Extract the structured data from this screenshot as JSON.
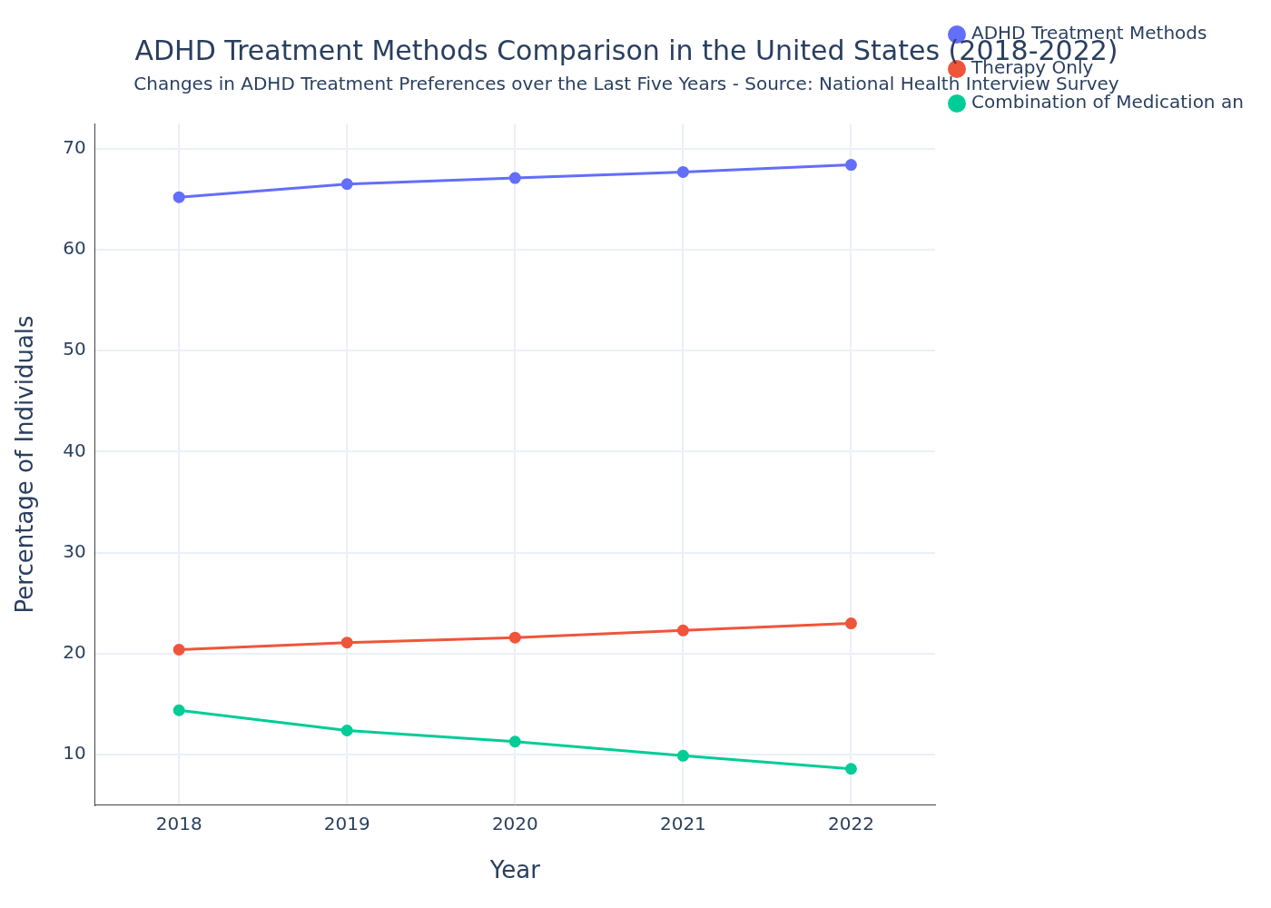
{
  "chart_data": {
    "type": "line",
    "title": "ADHD Treatment Methods Comparison in the United States (2018-2022)",
    "subtitle": "Changes in ADHD Treatment Preferences over the Last Five Years - Source: National Health Interview Survey",
    "x_label": "Year",
    "y_label": "Percentage of Individuals",
    "categories": [
      "2018",
      "2019",
      "2020",
      "2021",
      "2022"
    ],
    "series": [
      {
        "name": "ADHD Treatment Methods",
        "color": "#636efa",
        "marker": "circle",
        "values": [
          65.2,
          66.5,
          67.1,
          67.7,
          68.4
        ]
      },
      {
        "name": "Therapy Only",
        "color": "#ef553b",
        "marker": "circle",
        "values": [
          20.4,
          21.1,
          21.6,
          22.3,
          23.0
        ]
      },
      {
        "name": "Combination of Medication and Therapy",
        "color": "#00cc96",
        "marker": "circle",
        "values": [
          14.4,
          12.4,
          11.3,
          9.9,
          8.6
        ]
      }
    ],
    "ylim": [
      5,
      72.5
    ],
    "yticks": [
      10,
      20,
      30,
      40,
      50,
      60,
      70
    ],
    "grid": true,
    "legend": "top right"
  }
}
